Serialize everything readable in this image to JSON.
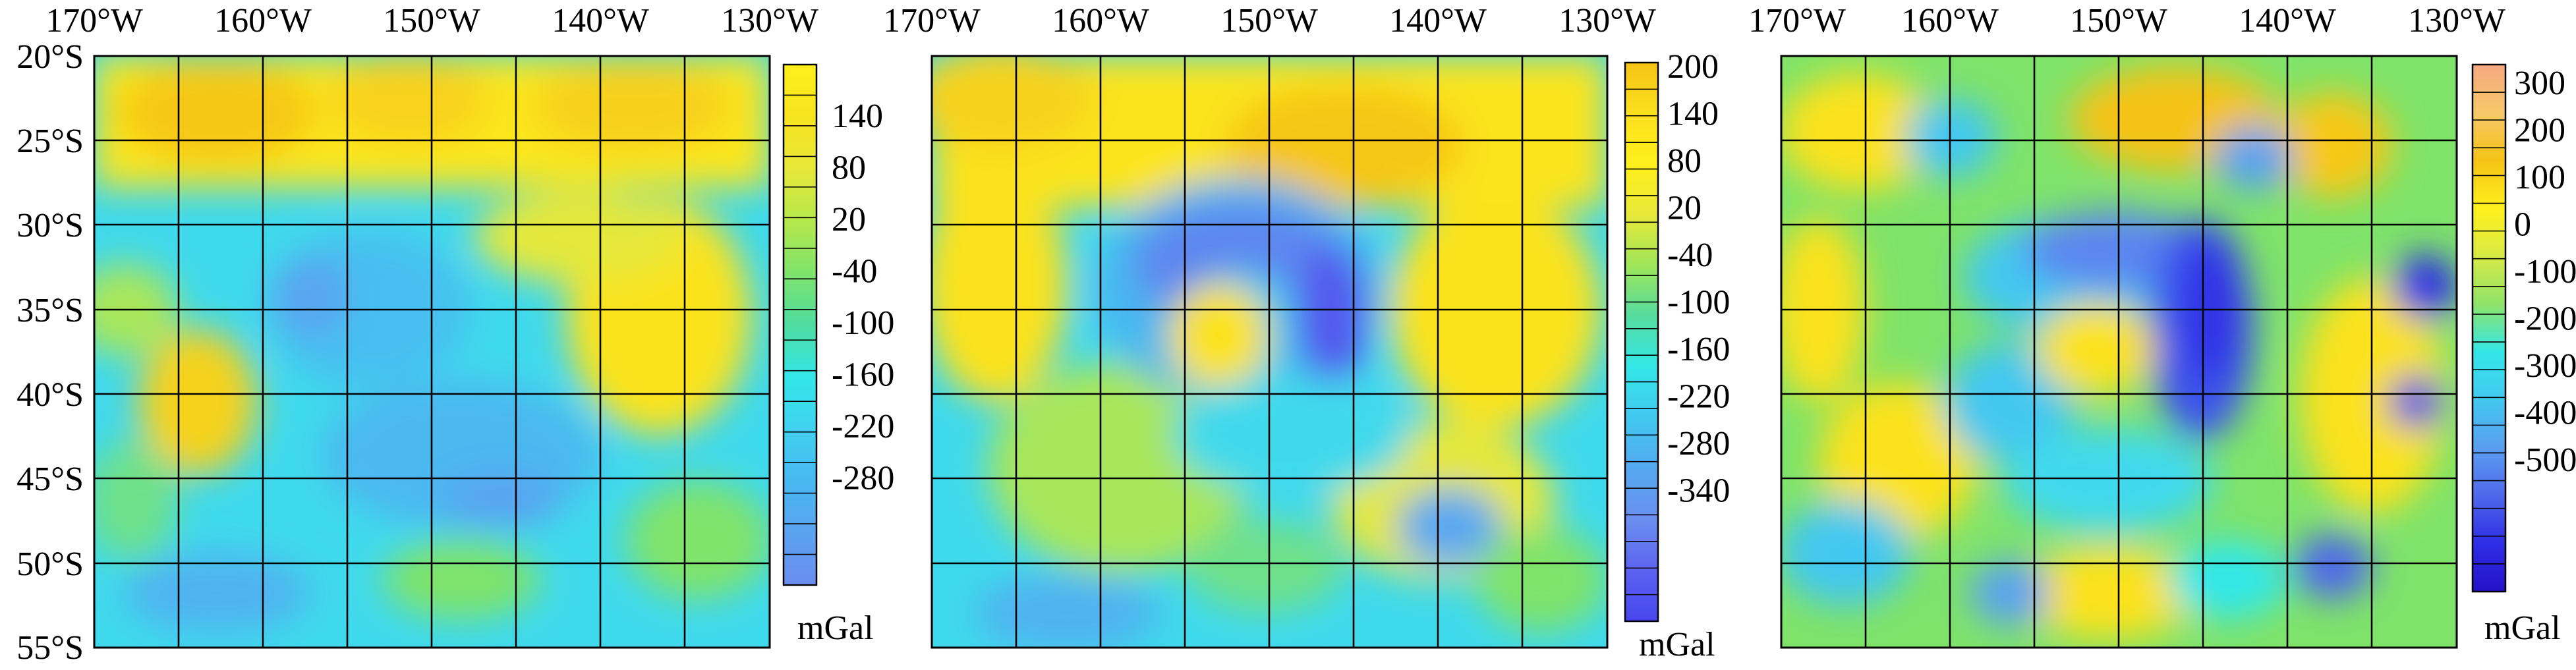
{
  "figure": {
    "x_tick_labels": [
      "170°W",
      "160°W",
      "150°W",
      "140°W",
      "130°W"
    ],
    "y_tick_labels": [
      "20°S",
      "25°S",
      "30°S",
      "35°S",
      "40°S",
      "45°S",
      "50°S",
      "55°S"
    ]
  },
  "panels": [
    {
      "unit": "mGal",
      "colorbar_ticks": [
        "140",
        "80",
        "20",
        "-40",
        "-100",
        "-160",
        "-220",
        "-280"
      ],
      "color_stops": [
        "#fff01c",
        "#f7e31f",
        "#e8e83a",
        "#b5e84c",
        "#7fe36a",
        "#4fdca0",
        "#33e7e8",
        "#40d1f0",
        "#48b8f0",
        "#5aa2f0",
        "#6b8df0"
      ]
    },
    {
      "unit": "mGal",
      "colorbar_ticks": [
        "200",
        "140",
        "80",
        "20",
        "-40",
        "-100",
        "-160",
        "-220",
        "-280",
        "-340"
      ],
      "color_stops": [
        "#f5c316",
        "#fce01e",
        "#fff01c",
        "#e8e83a",
        "#9ee65a",
        "#55dca0",
        "#33e7e8",
        "#42c8f0",
        "#55a8f0",
        "#6a8ff0",
        "#5d62f0",
        "#4746ee"
      ]
    },
    {
      "unit": "mGal",
      "colorbar_ticks": [
        "300",
        "200",
        "100",
        "0",
        "-100",
        "-200",
        "-300",
        "-400",
        "-500"
      ],
      "color_stops": [
        "#f6a880",
        "#f7c86a",
        "#f5c316",
        "#fff01c",
        "#d8ea45",
        "#8fe36a",
        "#33e7e8",
        "#42c8f0",
        "#5a9ef0",
        "#4f68ea",
        "#2e2de6",
        "#2412c8"
      ]
    }
  ]
}
